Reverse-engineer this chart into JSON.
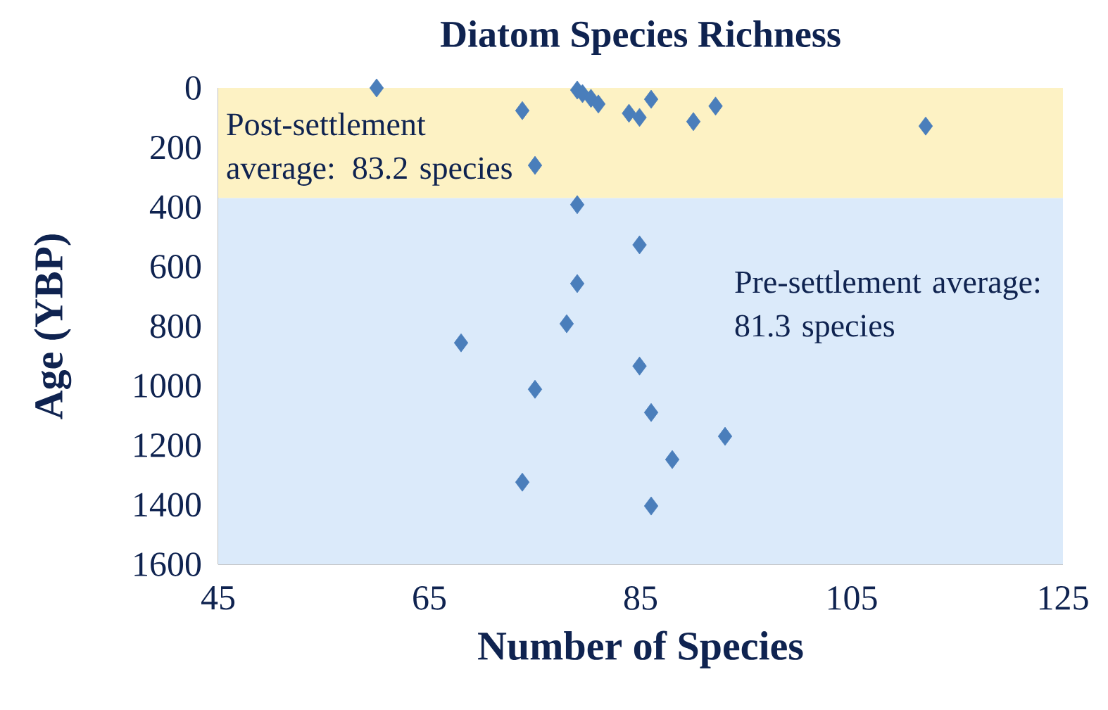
{
  "chart_data": {
    "type": "scatter",
    "title": "Diatom Species Richness",
    "xlabel": "Number of Species",
    "ylabel": "Age (YBP)",
    "x": [
      60,
      79,
      79.5,
      80.3,
      81,
      86,
      73.8,
      83.9,
      84.9,
      92.1,
      90,
      112,
      75,
      79,
      84.9,
      79,
      78,
      68,
      84.9,
      75,
      86,
      93,
      88,
      73.8,
      86
    ],
    "series": [
      {
        "color": "#4a7ebb",
        "values": [
          0,
          7,
          19,
          35,
          54,
          38,
          76,
          85,
          99,
          61,
          113,
          128,
          260,
          392,
          527,
          657,
          792,
          856,
          934,
          1012,
          1090,
          1170,
          1248,
          1324,
          1404
        ]
      }
    ],
    "xlim": [
      45,
      125
    ],
    "xticks": [
      45,
      65,
      85,
      105,
      125
    ],
    "ylim": [
      1600,
      0
    ],
    "yticks": [
      0,
      200,
      400,
      600,
      800,
      1000,
      1200,
      1400,
      1600
    ],
    "bands": [
      {
        "axis": "y",
        "from": 0,
        "to": 370,
        "label": "Post-settlement average: 83.2 species",
        "color": "#fdf2c4"
      },
      {
        "axis": "y",
        "from": 370,
        "to": 1600,
        "label": "Pre-settlement average: 81.3 species",
        "color": "#dbeafa"
      }
    ],
    "marker": "diamond",
    "grid": false
  }
}
